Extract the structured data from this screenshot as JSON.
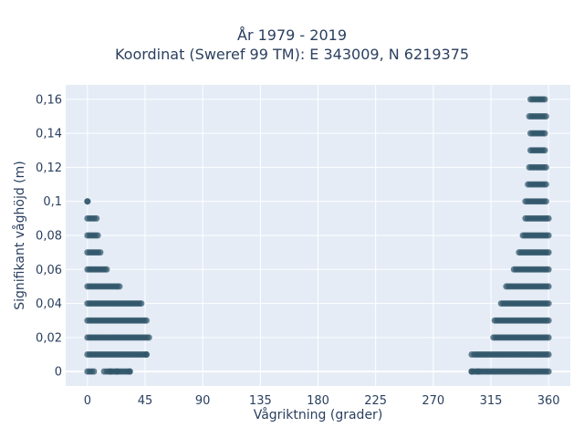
{
  "chart_data": {
    "type": "scatter",
    "title_lines": [
      "År 1979 - 2019",
      "Koordinat (Sweref 99 TM): E 343009, N 6219375"
    ],
    "xlabel": "Vågriktning (grader)",
    "ylabel": "Signifikant våghöjd (m)",
    "xlim": [
      -17,
      377
    ],
    "ylim": [
      -0.0085,
      0.1685
    ],
    "x_ticks": [
      0,
      45,
      90,
      135,
      180,
      225,
      270,
      315,
      360
    ],
    "x_tick_labels": [
      "0",
      "45",
      "90",
      "135",
      "180",
      "225",
      "270",
      "315",
      "360"
    ],
    "y_ticks": [
      0,
      0.02,
      0.04,
      0.06,
      0.08,
      0.1,
      0.12,
      0.14,
      0.16
    ],
    "y_tick_labels": [
      "0",
      "0,02",
      "0,04",
      "0,06",
      "0,08",
      "0,1",
      "0,12",
      "0,14",
      "0,16"
    ],
    "grid": true,
    "marker_color": "#2f5468",
    "bands": [
      {
        "y": 0.0,
        "segments": [
          [
            0,
            5
          ],
          [
            15,
            33
          ],
          [
            300,
            360
          ]
        ]
      },
      {
        "y": 0.01,
        "segments": [
          [
            0,
            46
          ],
          [
            302,
            360
          ]
        ]
      },
      {
        "y": 0.02,
        "segments": [
          [
            0,
            48
          ],
          [
            317,
            360
          ]
        ]
      },
      {
        "y": 0.03,
        "segments": [
          [
            0,
            46
          ],
          [
            318,
            360
          ]
        ]
      },
      {
        "y": 0.04,
        "segments": [
          [
            0,
            42
          ],
          [
            323,
            360
          ]
        ]
      },
      {
        "y": 0.05,
        "segments": [
          [
            0,
            25
          ],
          [
            327,
            360
          ]
        ]
      },
      {
        "y": 0.06,
        "segments": [
          [
            0,
            15
          ],
          [
            333,
            360
          ]
        ]
      },
      {
        "y": 0.07,
        "segments": [
          [
            0,
            10
          ],
          [
            337,
            360
          ]
        ]
      },
      {
        "y": 0.08,
        "segments": [
          [
            0,
            8
          ],
          [
            340,
            360
          ]
        ]
      },
      {
        "y": 0.09,
        "segments": [
          [
            0,
            7
          ],
          [
            342,
            360
          ]
        ]
      },
      {
        "y": 0.1,
        "segments": [
          [
            0,
            0
          ],
          [
            342,
            358
          ]
        ]
      },
      {
        "y": 0.11,
        "segments": [
          [
            344,
            358
          ]
        ]
      },
      {
        "y": 0.12,
        "segments": [
          [
            345,
            358
          ]
        ]
      },
      {
        "y": 0.13,
        "segments": [
          [
            346,
            357
          ]
        ]
      },
      {
        "y": 0.14,
        "segments": [
          [
            346,
            357
          ]
        ]
      },
      {
        "y": 0.15,
        "segments": [
          [
            345,
            358
          ]
        ]
      },
      {
        "y": 0.16,
        "segments": [
          [
            346,
            357
          ]
        ]
      }
    ],
    "scattered_points": [
      {
        "x": 13,
        "y": 0.0
      },
      {
        "x": 18,
        "y": 0.0
      },
      {
        "x": 23,
        "y": 0.0
      },
      {
        "x": 33,
        "y": 0.0
      },
      {
        "x": 300,
        "y": 0.0
      },
      {
        "x": 305,
        "y": 0.0
      },
      {
        "x": 300,
        "y": 0.01
      },
      {
        "x": 46,
        "y": 0.01
      }
    ]
  }
}
